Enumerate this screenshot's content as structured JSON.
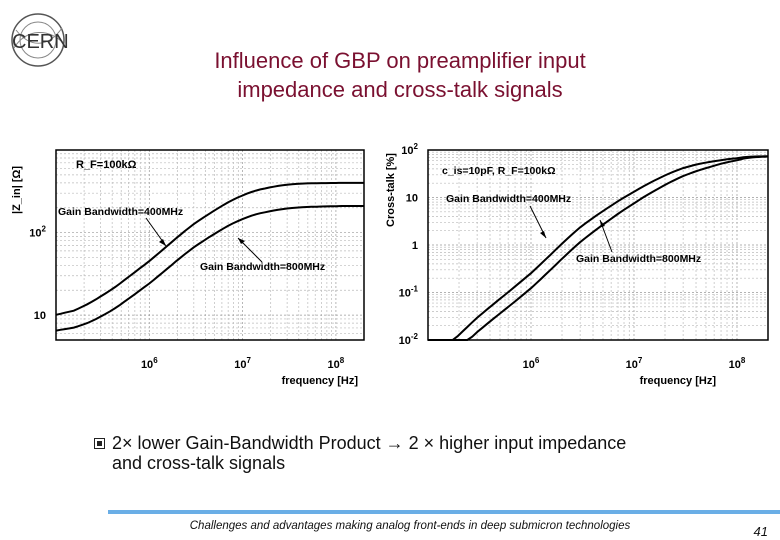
{
  "logo": {
    "text": "CERN"
  },
  "title": {
    "line1": "Influence of GBP on preamplifier input",
    "line2": "impedance and cross-talk signals"
  },
  "bullet": {
    "line1": "2× lower Gain-Bandwidth Product → 2 × higher input impedance",
    "line2": "and cross-talk signals"
  },
  "footer": {
    "text": "Challenges and advantages making analog front-ends in deep submicron technologies"
  },
  "page_number": "41",
  "chart_data": [
    {
      "type": "line",
      "ylabel": "|Z_in| [Ω]",
      "xlabel": "frequency [Hz]",
      "xscale": "log",
      "yscale": "log",
      "xlim": [
        100000,
        200000000
      ],
      "ylim": [
        5,
        1000
      ],
      "x_ticks": [
        "10^6",
        "10^7",
        "10^8"
      ],
      "y_ticks": [
        "10",
        "10^2"
      ],
      "annotations": [
        "R_F=100kΩ",
        "Gain Bandwidth=400MHz",
        "Gain Bandwidth=800MHz"
      ],
      "grid": true,
      "series": [
        {
          "name": "Gain Bandwidth=400MHz",
          "x": [
            100000,
            300000,
            1000000,
            3000000,
            10000000,
            30000000,
            100000000,
            200000000
          ],
          "y": [
            9,
            16,
            45,
            130,
            300,
            390,
            400,
            400
          ]
        },
        {
          "name": "Gain Bandwidth=800MHz",
          "x": [
            100000,
            300000,
            1000000,
            3000000,
            10000000,
            30000000,
            100000000,
            200000000
          ],
          "y": [
            6,
            9,
            24,
            68,
            155,
            200,
            210,
            210
          ]
        }
      ]
    },
    {
      "type": "line",
      "ylabel": "Cross-talk [%]",
      "xlabel": "frequency [Hz]",
      "xscale": "log",
      "yscale": "log",
      "xlim": [
        100000,
        200000000
      ],
      "ylim": [
        0.01,
        100
      ],
      "x_ticks": [
        "10^6",
        "10^7",
        "10^8"
      ],
      "y_ticks": [
        "10^-2",
        "10^-1",
        "1",
        "10",
        "10^2"
      ],
      "annotations": [
        "c_is=10pF, R_F=100kΩ",
        "Gain Bandwidth=400MHz",
        "Gain Bandwidth=800MHz"
      ],
      "grid": true,
      "series": [
        {
          "name": "Gain Bandwidth=400MHz",
          "x": [
            100000,
            300000,
            1000000,
            3000000,
            10000000,
            30000000,
            100000000,
            200000000
          ],
          "y": [
            0.003,
            0.03,
            0.25,
            2.5,
            14,
            45,
            70,
            75
          ]
        },
        {
          "name": "Gain Bandwidth=800MHz",
          "x": [
            100000,
            300000,
            1000000,
            3000000,
            10000000,
            30000000,
            100000000,
            200000000
          ],
          "y": [
            0.0015,
            0.015,
            0.12,
            1.2,
            8,
            30,
            65,
            75
          ]
        }
      ]
    }
  ]
}
